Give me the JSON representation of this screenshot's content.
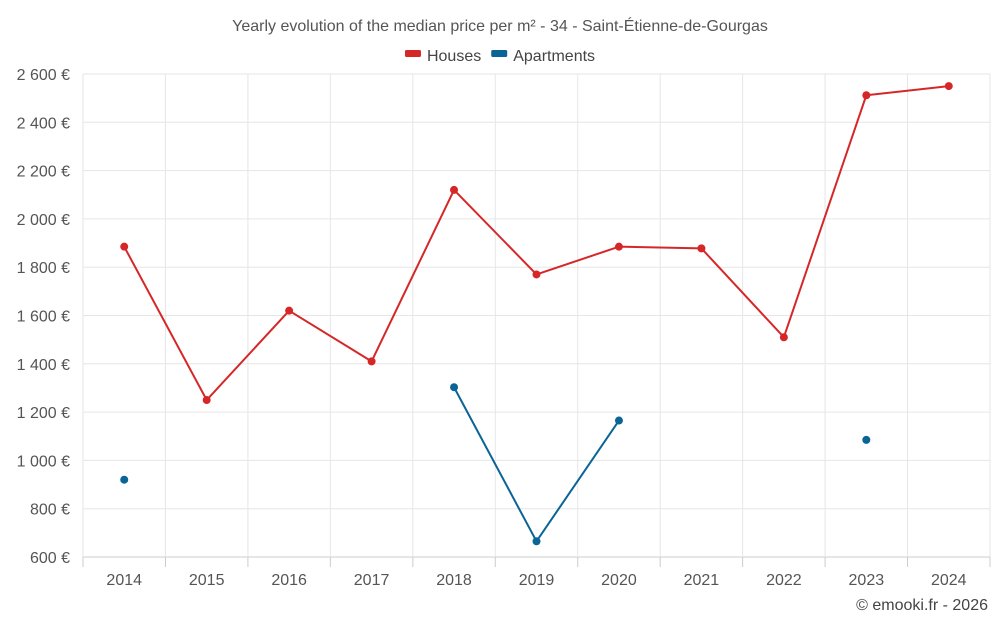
{
  "chart_data": {
    "type": "line",
    "title": "Yearly evolution of the median price per m² - 34 - Saint-Étienne-de-Gourgas",
    "categories": [
      "2014",
      "2015",
      "2016",
      "2017",
      "2018",
      "2019",
      "2020",
      "2021",
      "2022",
      "2023",
      "2024"
    ],
    "series": [
      {
        "name": "Houses",
        "color": "#d62728",
        "values": [
          1885,
          1250,
          1620,
          1410,
          2120,
          1770,
          1885,
          1878,
          1510,
          2512,
          2550
        ]
      },
      {
        "name": "Apartments",
        "color": "#0a6496",
        "values": [
          920,
          null,
          null,
          null,
          1303,
          665,
          1165,
          null,
          null,
          1085,
          null
        ]
      }
    ],
    "yticks": [
      600,
      800,
      1000,
      1200,
      1400,
      1600,
      1800,
      2000,
      2200,
      2400,
      2600
    ],
    "ytick_labels": [
      "600 €",
      "800 €",
      "1 000 €",
      "1 200 €",
      "1 400 €",
      "1 600 €",
      "1 800 €",
      "2 000 €",
      "2 200 €",
      "2 400 €",
      "2 600 €"
    ],
    "ylim": [
      600,
      2600
    ],
    "xlabel": "",
    "ylabel": "",
    "grid": true,
    "legend_position": "top-center",
    "credit": "© emooki.fr - 2026"
  }
}
